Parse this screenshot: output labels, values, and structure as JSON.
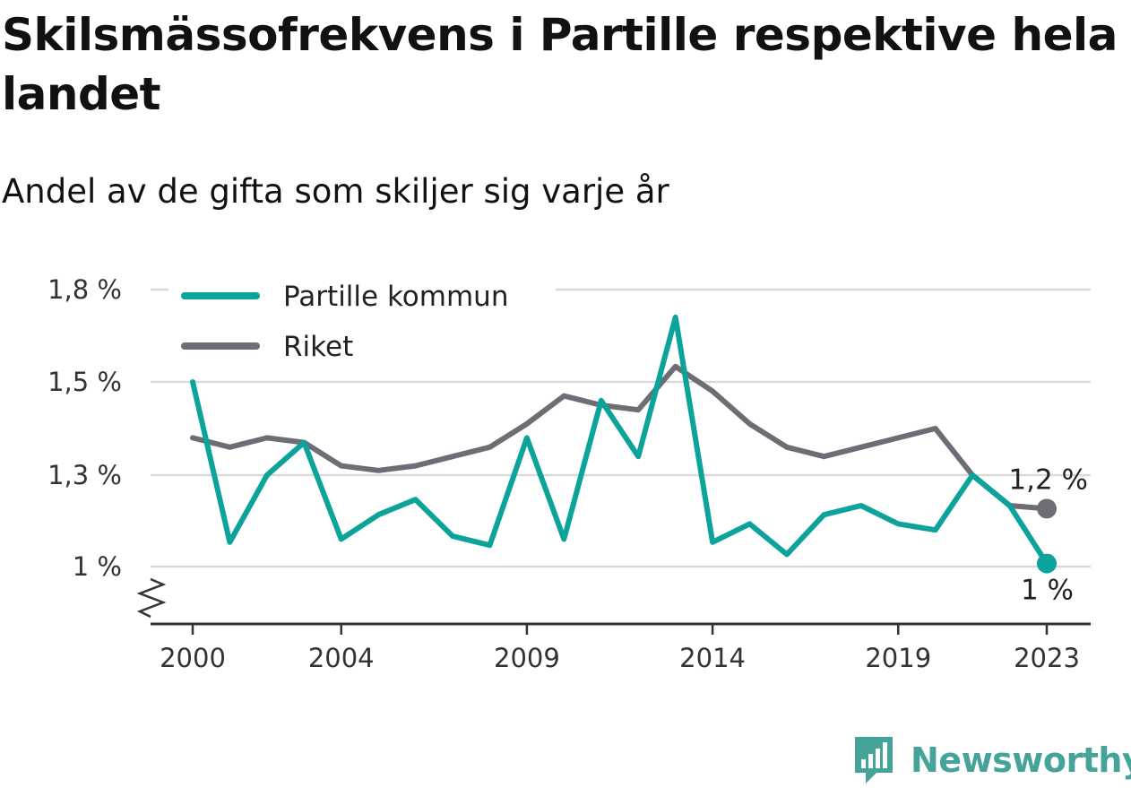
{
  "title": "Skilsmässofrekvens i Partille respektive hela landet",
  "subtitle": "Andel av de gifta som skiljer sig varje år",
  "brand": "Newsworthy",
  "chart_data": {
    "type": "line",
    "x": [
      2000,
      2001,
      2002,
      2003,
      2004,
      2005,
      2006,
      2007,
      2008,
      2009,
      2010,
      2011,
      2012,
      2013,
      2014,
      2015,
      2016,
      2017,
      2018,
      2019,
      2020,
      2021,
      2022,
      2023
    ],
    "x_ticks": [
      2000,
      2004,
      2009,
      2014,
      2019,
      2023
    ],
    "y_ticks": [
      1.0,
      1.3,
      1.5,
      1.8
    ],
    "y_tick_labels": [
      "1 %",
      "1,3 %",
      "1,5 %",
      "1,8 %"
    ],
    "ylim": [
      0.88,
      1.8
    ],
    "axis_break": true,
    "grid": true,
    "legend_position": "top-left",
    "series": [
      {
        "name": "Partille kommun",
        "color": "#0ba39a",
        "values": [
          1.5,
          1.08,
          1.3,
          1.37,
          1.09,
          1.17,
          1.22,
          1.1,
          1.07,
          1.38,
          1.09,
          1.46,
          1.34,
          1.71,
          1.08,
          1.14,
          1.04,
          1.17,
          1.2,
          1.14,
          1.12,
          1.3,
          1.2,
          1.01
        ],
        "end_label": "1 %"
      },
      {
        "name": "Riket",
        "color": "#6e6d75",
        "values": [
          1.38,
          1.36,
          1.38,
          1.37,
          1.32,
          1.31,
          1.32,
          1.34,
          1.36,
          1.41,
          1.47,
          1.45,
          1.44,
          1.55,
          1.48,
          1.41,
          1.36,
          1.34,
          1.36,
          1.38,
          1.4,
          1.3,
          1.2,
          1.19
        ],
        "end_label": "1,2 %"
      }
    ]
  }
}
